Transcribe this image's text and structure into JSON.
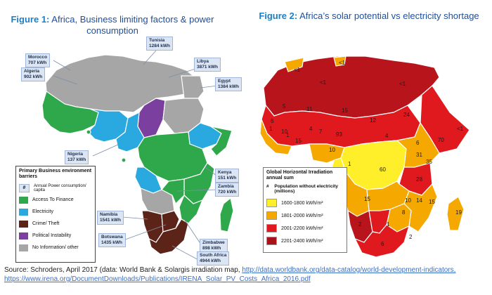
{
  "figure1": {
    "title_prefix": "Figure 1:",
    "title_text": "Africa, Business limiting factors & power consumption",
    "callouts": [
      {
        "id": "morocco",
        "name": "Morocco",
        "value": "707 kWh"
      },
      {
        "id": "algeria",
        "name": "Algeria",
        "value": "902 kWh"
      },
      {
        "id": "tunisia",
        "name": "Tunisia",
        "value": "1284 kWh"
      },
      {
        "id": "libya",
        "name": "Libya",
        "value": "3871 kWh"
      },
      {
        "id": "egypt",
        "name": "Egypt",
        "value": "1384 kWh"
      },
      {
        "id": "nigeria",
        "name": "Nigeria",
        "value": "137 kWh"
      },
      {
        "id": "kenya",
        "name": "Kenya",
        "value": "151 kWh"
      },
      {
        "id": "zambia",
        "name": "Zambia",
        "value": "720 kWh"
      },
      {
        "id": "namibia",
        "name": "Namibia",
        "value": "1541 kWh"
      },
      {
        "id": "botswana",
        "name": "Botswana",
        "value": "1435 kWh"
      },
      {
        "id": "zimbabwe",
        "name": "Zimbabwe",
        "value": "898 kWh"
      },
      {
        "id": "southafrica",
        "name": "South Africa",
        "value": "4944 kWh"
      }
    ],
    "legend": {
      "title": "Primary Business environment barriers",
      "items": [
        {
          "symbol": "#",
          "label": "Annual Power consumption/ capita"
        },
        {
          "color": "#2ea84a",
          "label": "Access To Finance"
        },
        {
          "color": "#29a9e0",
          "label": "Electricity"
        },
        {
          "color": "#5c2318",
          "label": "Crime/ Theft"
        },
        {
          "color": "#7b3fa0",
          "label": "Political Instability"
        },
        {
          "color": "#a6a6a6",
          "label": "No Information/ other"
        }
      ]
    }
  },
  "figure2": {
    "title_prefix": "Figure 2:",
    "title_text": "Africa’s solar potential vs electricity shortage",
    "legend": {
      "title": "Global Horizontal Irradiation annual sum",
      "symbol": "#",
      "symbol_label": "Population without electricity (millions)",
      "items": [
        {
          "color": "#ffef2a",
          "label": "1600-1800 kWh/m²"
        },
        {
          "color": "#f5a800",
          "label": "1801-2000 kWh/m²"
        },
        {
          "color": "#e0191e",
          "label": "2001-2200 kWh/m²"
        },
        {
          "color": "#a8121a",
          "label": "2201-2400 kWh/m²"
        }
      ]
    },
    "population_labels": [
      "<1",
      "<1",
      "<1",
      "<1",
      "6",
      "5",
      "11",
      "15",
      "12",
      "24",
      "1",
      "10",
      "4",
      "7",
      "93",
      "4",
      "6",
      "70",
      "<1",
      "1",
      "15",
      "10",
      "31",
      "35",
      "1",
      "60",
      "28",
      "15",
      "10",
      "14",
      "15",
      "19",
      "2",
      "8",
      "1",
      "2",
      "6"
    ]
  },
  "source": {
    "text": "Source: Schroders, April 2017 (data: World Bank & Solargis irradiation map,",
    "link1": "http://data.worldbank.org/data-catalog/world-development-indicators,",
    "link2": "https://www.irena.org/DocumentDownloads/Publications/IRENA_Solar_PV_Costs_Africa_2016.pdf"
  }
}
